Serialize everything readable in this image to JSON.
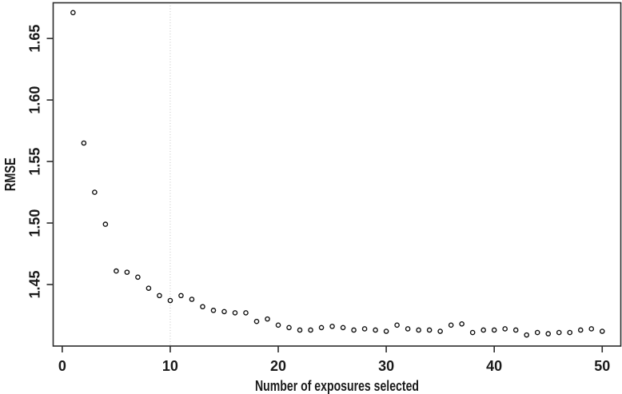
{
  "figure": {
    "background": "#ffffff",
    "text_color": "#1a1a1a",
    "axis_color": "#2b2b2b",
    "marker_color": "#111111",
    "reference_line_color": "#c5c5c5"
  },
  "chart_data": {
    "type": "scatter",
    "title": "",
    "xlabel": "Number of exposures selected",
    "ylabel": "RMSE",
    "marker": "open-circle",
    "grid": false,
    "legend": null,
    "xlim": [
      -0.84,
      51.72
    ],
    "ylim": [
      1.4,
      1.679
    ],
    "xticks": [
      0,
      10,
      20,
      30,
      40,
      50
    ],
    "xtick_labels": [
      "0",
      "10",
      "20",
      "30",
      "40",
      "50"
    ],
    "yticks": [
      1.45,
      1.5,
      1.55,
      1.6,
      1.65
    ],
    "ytick_labels": [
      "1.45",
      "1.50",
      "1.55",
      "1.60",
      "1.65"
    ],
    "reference_line": {
      "orientation": "vertical",
      "x": 10,
      "style": "dotted"
    },
    "x": [
      1,
      2,
      3,
      4,
      5,
      6,
      7,
      8,
      9,
      10,
      11,
      12,
      13,
      14,
      15,
      16,
      17,
      18,
      19,
      20,
      21,
      22,
      23,
      24,
      25,
      26,
      27,
      28,
      29,
      30,
      31,
      32,
      33,
      34,
      35,
      36,
      37,
      38,
      39,
      40,
      41,
      42,
      43,
      44,
      45,
      46,
      47,
      48,
      49,
      50
    ],
    "y": [
      1.671,
      1.565,
      1.525,
      1.499,
      1.461,
      1.46,
      1.456,
      1.447,
      1.441,
      1.437,
      1.441,
      1.438,
      1.432,
      1.429,
      1.428,
      1.427,
      1.427,
      1.42,
      1.422,
      1.417,
      1.415,
      1.413,
      1.413,
      1.415,
      1.416,
      1.415,
      1.413,
      1.414,
      1.413,
      1.412,
      1.417,
      1.414,
      1.413,
      1.413,
      1.412,
      1.417,
      1.418,
      1.411,
      1.413,
      1.413,
      1.414,
      1.413,
      1.409,
      1.411,
      1.41,
      1.411,
      1.411,
      1.413,
      1.414,
      1.412
    ]
  }
}
